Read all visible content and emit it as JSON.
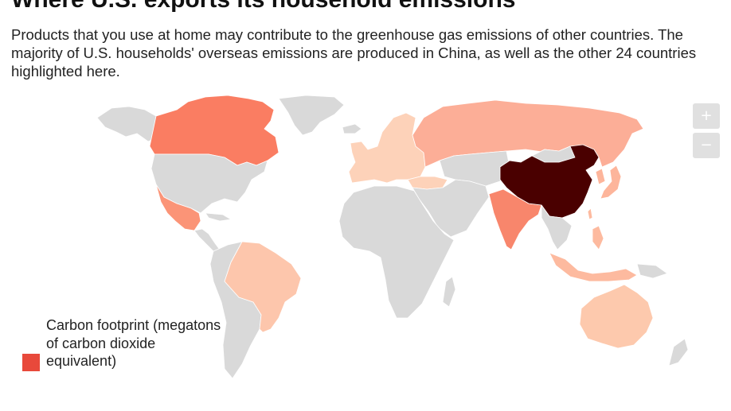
{
  "header": {
    "title": "Where U.S. exports its household emissions",
    "subtitle": "Products that you use at home may contribute to the greenhouse gas emissions of other countries. The majority of U.S. households' overseas emissions are produced in China, as well as the other 24 countries highlighted here."
  },
  "map": {
    "zoom_in_label": "+",
    "zoom_out_label": "−",
    "base_color": "#d9d9d9",
    "border_color": "#ffffff",
    "legend": {
      "title": "Carbon footprint (megatons of carbon dioxide equivalent)",
      "swatch_color": "#e8493b"
    },
    "colors": {
      "china": "#4a0000",
      "canada": "#fa7d62",
      "india": "#f8866c",
      "mexico": "#fb9477",
      "russia": "#fcae97",
      "brazil": "#fdc6ac",
      "australia": "#fdc9ad",
      "europe": "#fdd2b9",
      "japan": "#fdb59b",
      "southeast_asia": "#fdba9f"
    }
  }
}
